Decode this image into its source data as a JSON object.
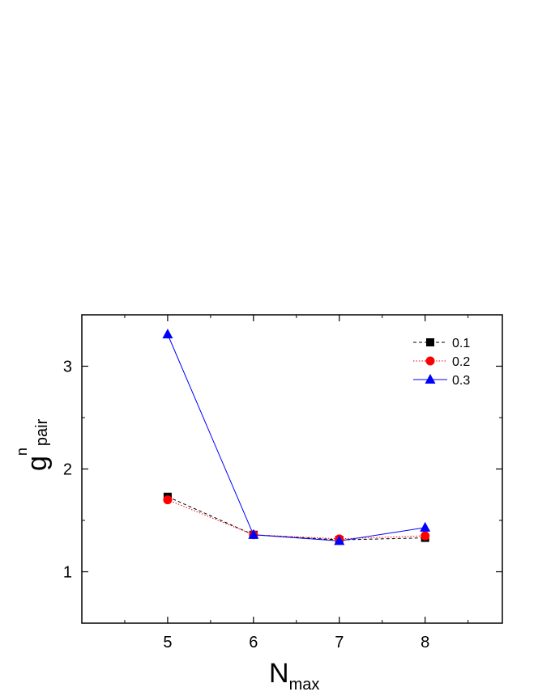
{
  "chart_data": {
    "type": "line",
    "xlabel": {
      "main": "N",
      "sub": "max"
    },
    "ylabel": {
      "main": "g",
      "sup": "n",
      "sub": "pair"
    },
    "xlim": [
      4,
      8.9
    ],
    "ylim": [
      0.5,
      3.5
    ],
    "xticks": [
      5,
      6,
      7,
      8
    ],
    "xtick_labels": [
      "5",
      "6",
      "7",
      "8"
    ],
    "yticks": [
      1,
      2,
      3
    ],
    "ytick_labels": [
      "1",
      "2",
      "3"
    ],
    "x": [
      5,
      6,
      7,
      8
    ],
    "series": [
      {
        "name": "0.1",
        "values": [
          1.73,
          1.36,
          1.31,
          1.33
        ],
        "color": "#000000",
        "marker": "square",
        "line": "dashed"
      },
      {
        "name": "0.2",
        "values": [
          1.7,
          1.36,
          1.32,
          1.35
        ],
        "color": "#ff0000",
        "marker": "circle",
        "line": "dotted"
      },
      {
        "name": "0.3",
        "values": [
          3.31,
          1.36,
          1.3,
          1.43
        ],
        "color": "#0000ff",
        "marker": "triangle",
        "line": "solid"
      }
    ],
    "legend_position": "top-right",
    "grid": false
  }
}
